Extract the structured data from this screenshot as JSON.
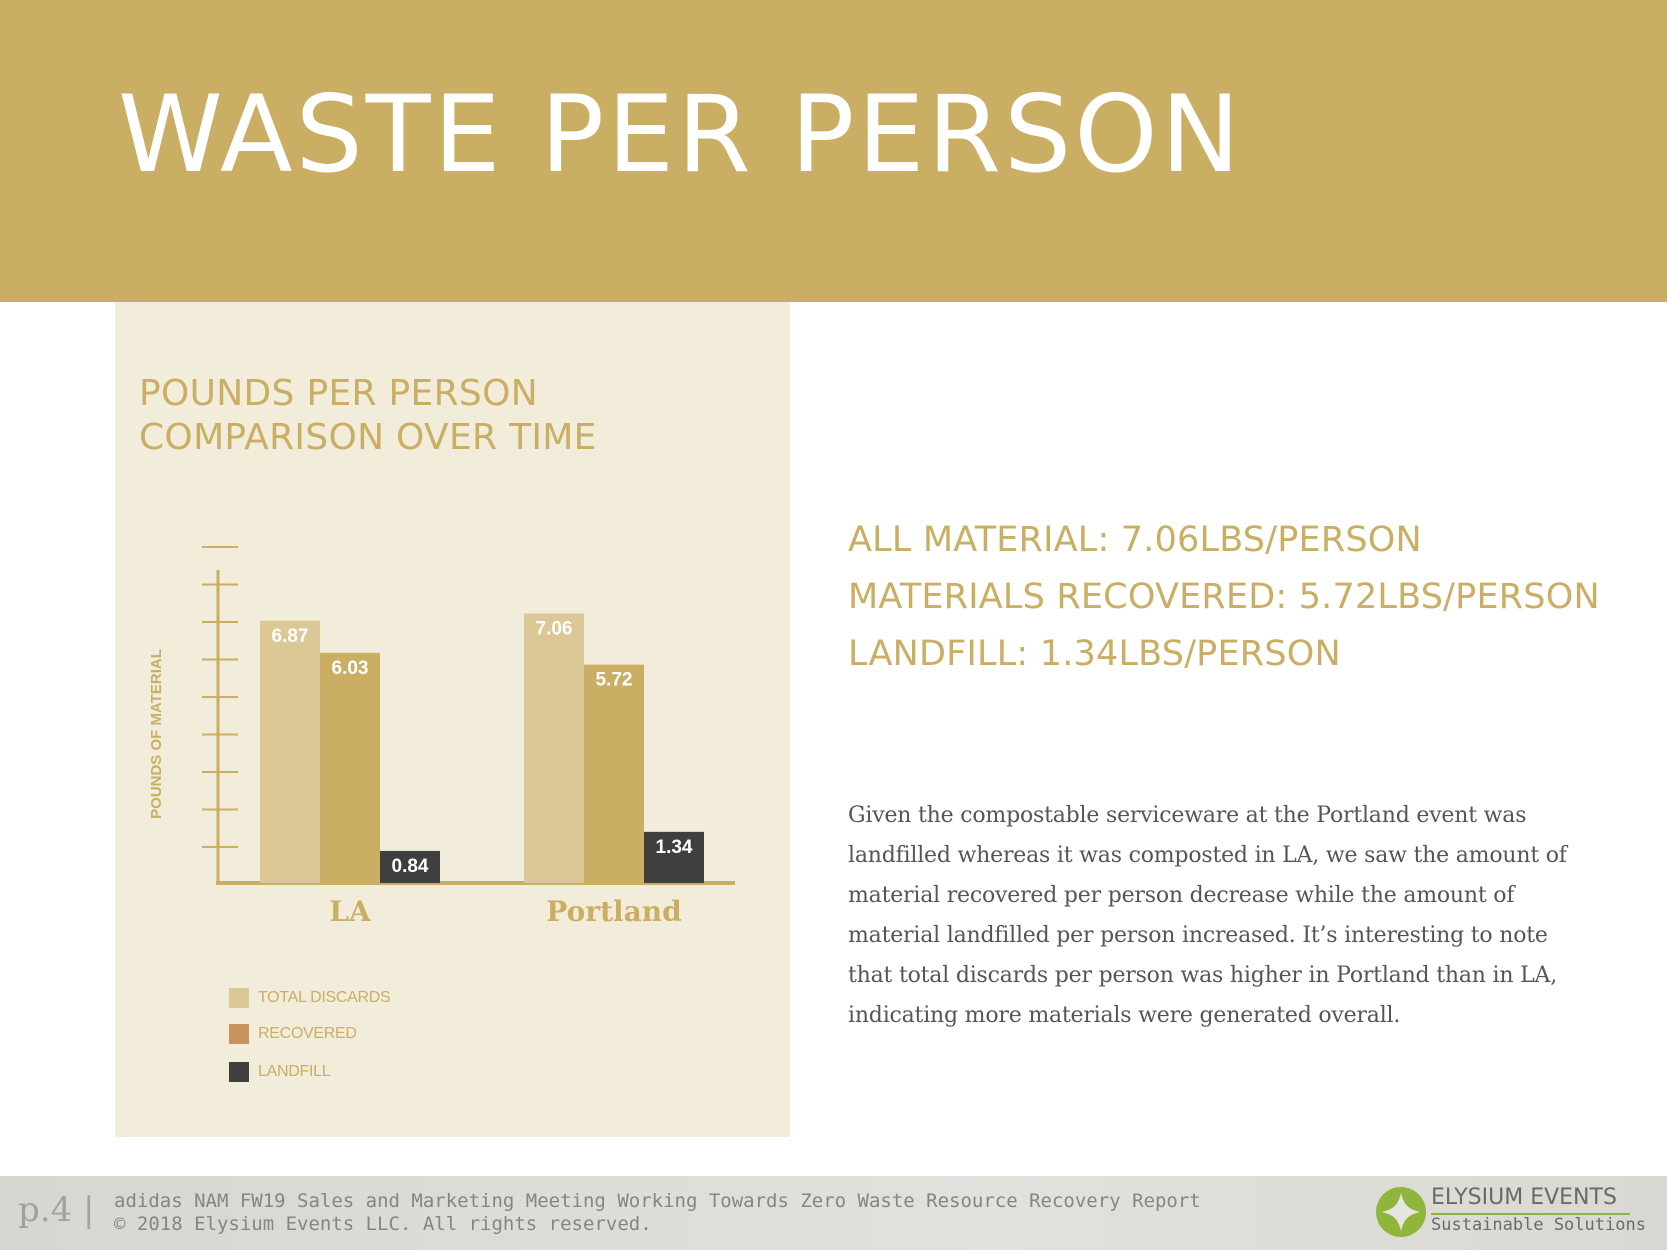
{
  "header": {
    "title": "WASTE PER PERSON"
  },
  "chart_data": {
    "type": "bar",
    "title_lines": [
      "POUNDS PER PERSON",
      "COMPARISON OVER TIME"
    ],
    "ylabel": "POUNDS OF MATERIAL",
    "xlabel": "",
    "categories": [
      "LA",
      "Portland"
    ],
    "series": [
      {
        "name": "TOTAL DISCARDS",
        "values": [
          6.87,
          7.06
        ],
        "color": "#dcc896"
      },
      {
        "name": "RECOVERED",
        "values": [
          6.03,
          5.72
        ],
        "color": "#c9ae63"
      },
      {
        "name": "LANDFILL",
        "values": [
          0.84,
          1.34
        ],
        "color": "#3f3f3f"
      }
    ],
    "value_labels": [
      [
        "6.87",
        "7.06"
      ],
      [
        "6.03",
        "5.72"
      ],
      [
        "0.84",
        "1.34"
      ]
    ],
    "legend_swatch_colors": [
      "#dcc896",
      "#c8935f",
      "#3f3f3f"
    ],
    "legend_position": "bottom-left",
    "ylim": [
      0,
      8.2
    ],
    "y_tick_labels_shown": false,
    "grid": false,
    "colors": {
      "axis": "#c9ae63",
      "label_text": "#ffffff",
      "category_text": "#c9ae63",
      "panel": "#f2ecdb"
    }
  },
  "stats": [
    "ALL MATERIAL: 7.06LBS/PERSON",
    "MATERIALS RECOVERED: 5.72LBS/PERSON",
    "LANDFILL: 1.34LBS/PERSON"
  ],
  "body_text": "Given the compostable serviceware at the Portland event was landfilled whereas it was composted in LA, we saw the amount of material recovered per person decrease while the amount of material landfilled per person increased. It’s interesting to note that total discards per person was higher in Portland than in LA, indicating more materials were generated overall.",
  "footer": {
    "page": "p.4 |",
    "line1": "adidas NAM FW19 Sales and Marketing Meeting Working Towards Zero Waste Resource Recovery Report",
    "line2": "© 2018 Elysium Events LLC.  All rights reserved.",
    "brand_name": "ELYSIUM EVENTS",
    "brand_tagline": "Sustainable Solutions",
    "brand_colors": {
      "leaf": "#8fb53a",
      "rule": "#8fb53a"
    }
  }
}
